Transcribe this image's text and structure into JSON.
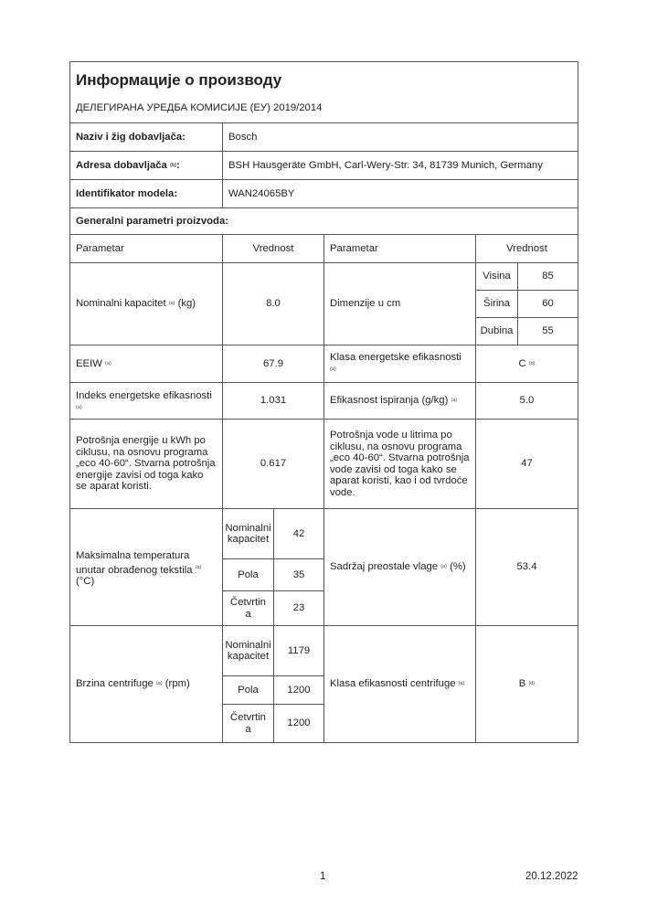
{
  "title": "Информације о производу",
  "regulation": "ДЕЛЕГИРАНА УРЕДБА КОМИСИЈЕ (ЕУ) 2019/2014",
  "supplier": {
    "name_label": "Naziv i žig dobavljača:",
    "name": "Bosch",
    "address_label": "Adresa dobavljača",
    "address_sup": "(b)",
    "address": "BSH Hausgeräte GmbH, Carl-Wery-Str. 34, 81739 Munich, Germany",
    "model_label": "Identifikator modela:",
    "model": "WAN24065BY"
  },
  "general_label": "Generalni parametri proizvoda:",
  "headers": {
    "param1": "Parametar",
    "value1": "Vrednost",
    "param2": "Parametar",
    "value2": "Vrednost"
  },
  "capacity": {
    "label": "Nominalni kapacitet",
    "sup": "(a)",
    "unit": "(kg)",
    "value": "8.0"
  },
  "dimensions": {
    "label": "Dimenzije u cm",
    "height_label": "Visina",
    "height": "85",
    "width_label": "Širina",
    "width": "60",
    "depth_label": "Dubina",
    "depth": "55"
  },
  "eeiw": {
    "label": "EEIW",
    "sup": "(a)",
    "value": "67.9"
  },
  "energy_class": {
    "label": "Klasa energetske efikasnosti",
    "sup": "(a)",
    "value": "C",
    "value_sup": "(d)"
  },
  "eei": {
    "label": "Indeks energetske efikasnosti",
    "sup": "(a)",
    "value": "1.031"
  },
  "rinsing": {
    "label": "Efikasnost ispiranja (g/kg)",
    "sup": "(a)",
    "value": "5.0"
  },
  "energy_consumption": {
    "label": "Potrošnja energije u kWh po ciklusu, na osnovu programa „eco 40-60“. Stvarna potrošnja energije zavisi od toga kako se aparat koristi.",
    "value": "0.617"
  },
  "water_consumption": {
    "label": "Potrošnja vode u litrima po ciklusu, na osnovu programa „eco 40-60“. Stvarna potrošnja vode zavisi od toga kako se aparat koristi, kao i od tvrdoće vode.",
    "value": "47"
  },
  "max_temp": {
    "label": "Maksimalna temperatura unutar obrađenog tekstila",
    "sup": "(a)",
    "unit": "(°C)",
    "rows": [
      {
        "label": "Nominalni kapacitet",
        "value": "42"
      },
      {
        "label": "Pola",
        "value": "35"
      },
      {
        "label": "Četvrtina",
        "value": "23"
      }
    ]
  },
  "moisture": {
    "label": "Sadržaj preostale vlage",
    "sup": "(a)",
    "unit": "(%)",
    "value": "53.4"
  },
  "spin_speed": {
    "label": "Brzina centrifuge",
    "sup": "(a)",
    "unit": "(rpm)",
    "rows": [
      {
        "label": "Nominalni kapacitet",
        "value": "1179"
      },
      {
        "label": "Pola",
        "value": "1200"
      },
      {
        "label": "Četvrtina",
        "value": "1200"
      }
    ]
  },
  "spin_class": {
    "label": "Klasa efikasnosti centrifuge",
    "sup": "(a)",
    "value": "B",
    "value_sup": "(d)"
  },
  "footer": {
    "page": "1",
    "date": "20.12.2022"
  }
}
